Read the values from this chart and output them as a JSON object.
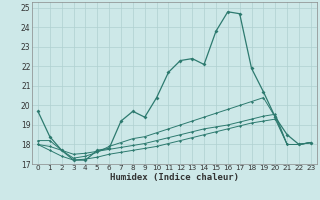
{
  "xlabel": "Humidex (Indice chaleur)",
  "bg_color": "#cde8e8",
  "grid_color": "#b0d0d0",
  "line_color": "#2d7a6f",
  "xlim": [
    -0.5,
    23.5
  ],
  "ylim": [
    17,
    25.3
  ],
  "xticks": [
    0,
    1,
    2,
    3,
    4,
    5,
    6,
    7,
    8,
    9,
    10,
    11,
    12,
    13,
    14,
    15,
    16,
    17,
    18,
    19,
    20,
    21,
    22,
    23
  ],
  "yticks": [
    17,
    18,
    19,
    20,
    21,
    22,
    23,
    24,
    25
  ],
  "main_x": [
    0,
    1,
    2,
    3,
    4,
    5,
    6,
    7,
    8,
    9,
    10,
    11,
    12,
    13,
    14,
    15,
    16,
    17,
    18,
    19,
    20,
    21,
    22,
    23
  ],
  "main_y": [
    19.7,
    18.4,
    17.7,
    17.2,
    17.2,
    17.7,
    17.8,
    19.2,
    19.7,
    19.4,
    20.4,
    21.7,
    22.3,
    22.4,
    22.1,
    23.8,
    24.8,
    24.7,
    21.9,
    20.7,
    19.4,
    18.5,
    18.0,
    18.1
  ],
  "line2_x": [
    0,
    1,
    2,
    3,
    4,
    5,
    6,
    7,
    8,
    9,
    10,
    11,
    12,
    13,
    14,
    15,
    16,
    17,
    18,
    19,
    20,
    21,
    22,
    23
  ],
  "line2_y": [
    18.2,
    18.2,
    17.7,
    17.3,
    17.4,
    17.6,
    17.9,
    18.1,
    18.3,
    18.4,
    18.6,
    18.8,
    19.0,
    19.2,
    19.4,
    19.6,
    19.8,
    20.0,
    20.2,
    20.4,
    19.4,
    18.0,
    18.0,
    18.1
  ],
  "line3_x": [
    0,
    1,
    2,
    3,
    4,
    5,
    6,
    7,
    8,
    9,
    10,
    11,
    12,
    13,
    14,
    15,
    16,
    17,
    18,
    19,
    20,
    21,
    22,
    23
  ],
  "line3_y": [
    18.0,
    17.9,
    17.7,
    17.5,
    17.55,
    17.65,
    17.75,
    17.85,
    17.95,
    18.05,
    18.2,
    18.35,
    18.5,
    18.65,
    18.8,
    18.9,
    19.0,
    19.15,
    19.3,
    19.45,
    19.55,
    18.0,
    18.0,
    18.1
  ],
  "line4_x": [
    0,
    1,
    2,
    3,
    4,
    5,
    6,
    7,
    8,
    9,
    10,
    11,
    12,
    13,
    14,
    15,
    16,
    17,
    18,
    19,
    20,
    21,
    22,
    23
  ],
  "line4_y": [
    18.0,
    17.7,
    17.4,
    17.2,
    17.25,
    17.35,
    17.5,
    17.6,
    17.7,
    17.8,
    17.9,
    18.05,
    18.2,
    18.35,
    18.5,
    18.65,
    18.8,
    18.95,
    19.1,
    19.2,
    19.3,
    18.0,
    18.0,
    18.1
  ]
}
